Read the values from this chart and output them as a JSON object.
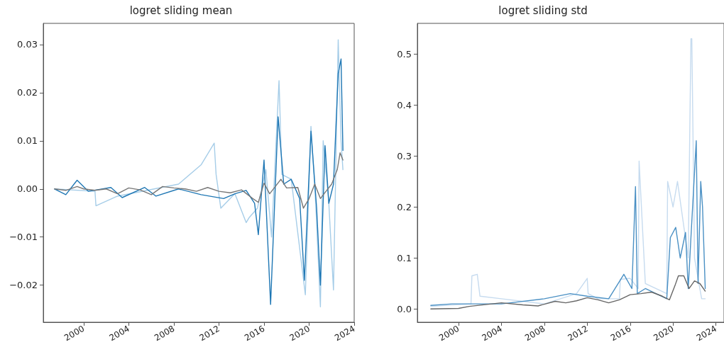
{
  "chart_data": [
    {
      "type": "line",
      "title": "logret sliding mean",
      "xlim": [
        "1996-06",
        "2024-01"
      ],
      "ylim": [
        -0.0277,
        0.0344
      ],
      "xticks": [
        "2000",
        "2004",
        "2008",
        "2012",
        "2016",
        "2020",
        "2024"
      ],
      "yticks": [
        -0.02,
        -0.01,
        {
          "value": 0,
          "label": "0.00"
        },
        0.01,
        0.02,
        0.03
      ],
      "series": [
        {
          "color": "#a6cde8",
          "x": [
            "1997-06",
            "2001-01",
            "2001-02",
            "2003-01",
            "2008-06",
            "2010-06",
            "2011-08",
            "2011-10",
            "2012-03",
            "2013-06",
            "2014-06",
            "2014-09",
            "2015-06",
            "2016-03",
            "2016-09",
            "2017-05",
            "2017-08",
            "2018-06",
            "2019-09",
            "2020-03",
            "2020-08",
            "2021-01",
            "2021-04",
            "2021-10",
            "2022-03",
            "2022-08",
            "2022-11",
            "2023-01"
          ],
          "values": [
            0.0,
            -0.0005,
            -0.0035,
            -0.0015,
            0.001,
            0.005,
            0.0095,
            0.003,
            -0.004,
            -0.001,
            -0.007,
            -0.006,
            -0.004,
            0.004,
            -0.01,
            0.0225,
            0.003,
            0.002,
            -0.022,
            0.013,
            -0.003,
            -0.0245,
            0.01,
            -0.003,
            -0.021,
            0.031,
            0.01,
            0.004
          ]
        },
        {
          "color": "#1f77b4",
          "x": [
            "1997-06",
            "1998-06",
            "1999-06",
            "2000-06",
            "2002-06",
            "2003-06",
            "2005-06",
            "2006-06",
            "2008-06",
            "2010-06",
            "2012-06",
            "2013-06",
            "2014-06",
            "2015-03",
            "2015-07",
            "2016-01",
            "2016-08",
            "2017-04",
            "2017-10",
            "2018-06",
            "2019-03",
            "2019-08",
            "2020-03",
            "2020-09",
            "2021-01",
            "2021-06",
            "2021-10",
            "2022-03",
            "2022-08",
            "2022-11",
            "2023-01"
          ],
          "values": [
            0.0,
            -0.0012,
            0.0018,
            -0.0005,
            0.0003,
            -0.0018,
            0.0003,
            -0.0015,
            0.0,
            -0.0012,
            -0.002,
            -0.001,
            -0.0003,
            -0.003,
            -0.0095,
            0.006,
            -0.024,
            0.015,
            0.001,
            0.002,
            -0.002,
            -0.019,
            0.012,
            -0.004,
            -0.02,
            0.009,
            -0.003,
            0.001,
            0.024,
            0.027,
            0.008
          ]
        },
        {
          "color": "#777777",
          "x": [
            "1997-06",
            "1998-06",
            "1999-06",
            "2000-01",
            "2001-01",
            "2002-01",
            "2003-01",
            "2004-01",
            "2005-01",
            "2006-01",
            "2007-01",
            "2008-01",
            "2009-01",
            "2010-01",
            "2011-01",
            "2012-01",
            "2013-01",
            "2014-01",
            "2015-01",
            "2015-07",
            "2016-01",
            "2016-07",
            "2017-01",
            "2017-07",
            "2018-01",
            "2019-01",
            "2019-07",
            "2020-01",
            "2020-07",
            "2021-01",
            "2021-07",
            "2022-01",
            "2022-07",
            "2022-10",
            "2023-01"
          ],
          "values": [
            0.0,
            -0.0003,
            0.0005,
            0.0,
            -0.0003,
            0.0,
            -0.001,
            0.0002,
            -0.0002,
            -0.0012,
            0.0005,
            0.0002,
            0.0,
            -0.0005,
            0.0003,
            -0.0005,
            -0.0008,
            -0.0002,
            -0.002,
            -0.0028,
            0.0012,
            -0.001,
            0.0005,
            0.002,
            0.0002,
            0.0003,
            -0.004,
            -0.002,
            0.001,
            -0.002,
            -0.0005,
            0.001,
            0.004,
            0.0075,
            0.006
          ]
        }
      ]
    },
    {
      "type": "line",
      "title": "logret sliding std",
      "xlim": [
        "1996-03",
        "2024-10"
      ],
      "ylim": [
        -0.026,
        0.56
      ],
      "xticks": [
        "2000",
        "2004",
        "2008",
        "2012",
        "2016",
        "2020",
        "2024"
      ],
      "yticks": [
        {
          "value": 0,
          "label": "0.0"
        },
        0.1,
        0.2,
        0.3,
        0.4,
        0.5
      ],
      "series": [
        {
          "color": "#c6dbef",
          "x": [
            "1997-06",
            "2001-03",
            "2001-04",
            "2001-10",
            "2002-01",
            "2004-01",
            "2008-01",
            "2011-01",
            "2012-01",
            "2012-02",
            "2013-01",
            "2015-01",
            "2015-02",
            "2016-01",
            "2016-10",
            "2016-11",
            "2017-06",
            "2019-06",
            "2019-07",
            "2020-01",
            "2020-06",
            "2021-06",
            "2021-09",
            "2021-10",
            "2022-01",
            "2022-06",
            "2022-09",
            "2023-01"
          ],
          "values": [
            0.005,
            0.01,
            0.065,
            0.068,
            0.025,
            0.02,
            0.01,
            0.03,
            0.06,
            0.03,
            0.02,
            0.02,
            0.058,
            0.06,
            0.04,
            0.29,
            0.05,
            0.03,
            0.25,
            0.2,
            0.25,
            0.1,
            0.53,
            0.53,
            0.1,
            0.05,
            0.02,
            0.02
          ]
        },
        {
          "color": "#4a90c4",
          "x": [
            "1997-06",
            "1999-06",
            "2004-01",
            "2008-01",
            "2010-06",
            "2012-01",
            "2014-01",
            "2015-06",
            "2016-03",
            "2016-07",
            "2016-09",
            "2017-06",
            "2019-06",
            "2019-10",
            "2020-04",
            "2020-09",
            "2021-03",
            "2021-06",
            "2021-09",
            "2022-03",
            "2022-05",
            "2022-08",
            "2022-10",
            "2023-01"
          ],
          "values": [
            0.007,
            0.01,
            0.01,
            0.02,
            0.03,
            0.025,
            0.02,
            0.068,
            0.04,
            0.24,
            0.03,
            0.04,
            0.02,
            0.14,
            0.16,
            0.1,
            0.15,
            0.04,
            0.14,
            0.33,
            0.05,
            0.25,
            0.2,
            0.04
          ]
        },
        {
          "color": "#666666",
          "x": [
            "1997-06",
            "2000-01",
            "2001-01",
            "2004-01",
            "2006-01",
            "2007-06",
            "2009-01",
            "2010-01",
            "2011-01",
            "2012-01",
            "2013-01",
            "2014-01",
            "2015-01",
            "2016-01",
            "2017-01",
            "2018-01",
            "2019-01",
            "2019-09",
            "2020-03",
            "2020-07",
            "2021-01",
            "2021-07",
            "2022-01",
            "2022-07",
            "2023-01"
          ],
          "values": [
            0.0,
            0.001,
            0.005,
            0.012,
            0.008,
            0.006,
            0.015,
            0.012,
            0.016,
            0.022,
            0.018,
            0.012,
            0.018,
            0.028,
            0.03,
            0.033,
            0.025,
            0.018,
            0.045,
            0.065,
            0.065,
            0.04,
            0.055,
            0.05,
            0.035
          ]
        }
      ]
    }
  ]
}
